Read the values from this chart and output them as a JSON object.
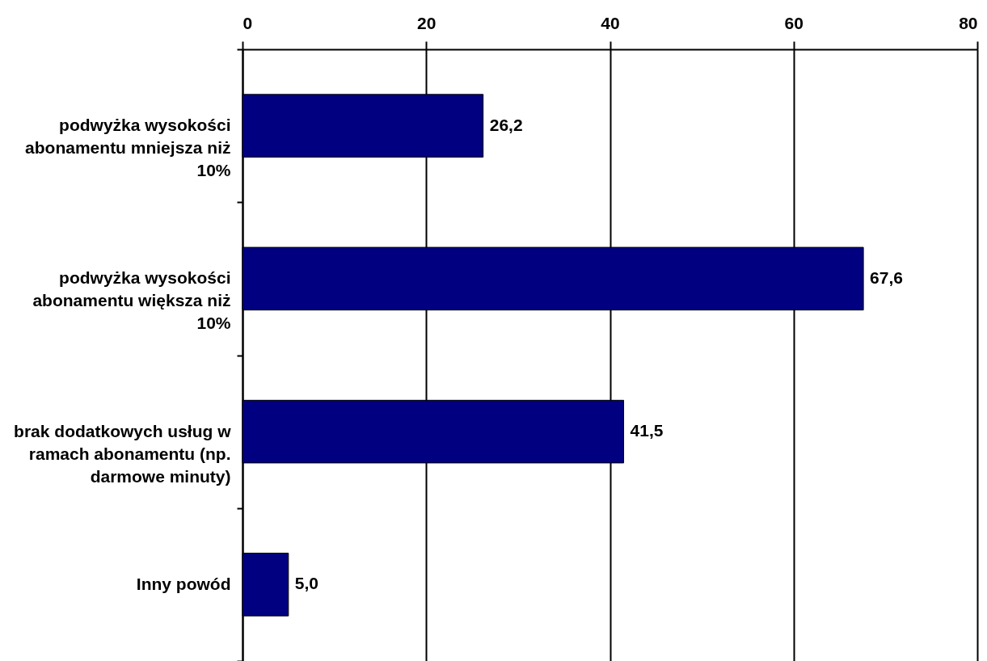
{
  "chart_data": {
    "type": "bar",
    "orientation": "horizontal",
    "categories": [
      "podwyżka wysokości abonamentu mniejsza niż 10%",
      "podwyżka wysokości abonamentu większa niż 10%",
      "brak dodatkowych usług w ramach abonamentu (np. darmowe minuty)",
      "Inny powód"
    ],
    "values": [
      26.2,
      67.6,
      41.5,
      5.0
    ],
    "color": "#000080",
    "value_labels": [
      "26,2",
      "67,6",
      "41,5",
      "5,0"
    ],
    "xlim": [
      0,
      80
    ],
    "xticks": [
      0,
      20,
      40,
      60,
      80
    ],
    "grid": "x"
  }
}
